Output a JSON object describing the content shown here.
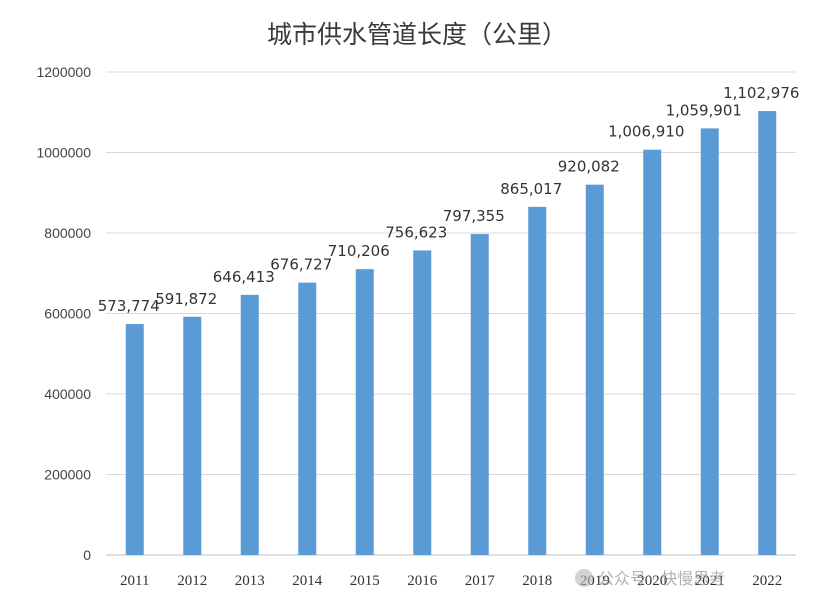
{
  "chart_data": {
    "type": "bar",
    "title": "城市供水管道长度（公里）",
    "xlabel": "",
    "ylabel": "",
    "categories": [
      "2011",
      "2012",
      "2013",
      "2014",
      "2015",
      "2016",
      "2017",
      "2018",
      "2019",
      "2020",
      "2021",
      "2022"
    ],
    "values": [
      573774,
      591872,
      646413,
      676727,
      710206,
      756623,
      797355,
      865017,
      920082,
      1006910,
      1059901,
      1102976
    ],
    "data_labels": [
      "573,774",
      "591,872",
      "646,413",
      "676,727",
      "710,206",
      "756,623",
      "797,355",
      "865,017",
      "920,082",
      "1,006,910",
      "1,059,901",
      "1,102,976"
    ],
    "ylim": [
      0,
      1200000
    ],
    "yticks": [
      0,
      200000,
      400000,
      600000,
      800000,
      1000000,
      1200000
    ],
    "ytick_labels": [
      "0",
      "200000",
      "400000",
      "600000",
      "800000",
      "1000000",
      "1200000"
    ],
    "grid": "horizontal",
    "legend": "none",
    "bar_color": "#5b9bd5",
    "watermark": "公众号 · 快慢思考"
  }
}
